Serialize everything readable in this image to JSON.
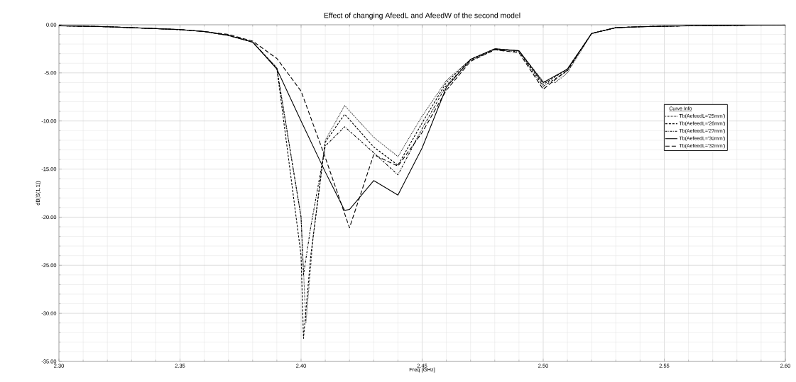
{
  "chart_data": {
    "type": "line",
    "title": "Effect of changing AfeedL and AfeedW of the second model",
    "xlabel": "Freq [GHz]",
    "ylabel": "dB(S(1,1))",
    "legend_title": "Curve Info",
    "legend": "right",
    "grid": true,
    "xlim": [
      2.3,
      2.6
    ],
    "ylim": [
      -35,
      0
    ],
    "xticks": [
      {
        "value": 2.3,
        "label": "2.30"
      },
      {
        "value": 2.35,
        "label": "2.35"
      },
      {
        "value": 2.4,
        "label": "2.40"
      },
      {
        "value": 2.45,
        "label": "2.45"
      },
      {
        "value": 2.5,
        "label": "2.50"
      },
      {
        "value": 2.55,
        "label": "2.55"
      },
      {
        "value": 2.6,
        "label": "2.60"
      }
    ],
    "yticks": [
      {
        "value": -35,
        "label": "-35.00"
      },
      {
        "value": -30,
        "label": "-30.00"
      },
      {
        "value": -25,
        "label": "-25.00"
      },
      {
        "value": -20,
        "label": "-20.00"
      },
      {
        "value": -15,
        "label": "-15.00"
      },
      {
        "value": -10,
        "label": "-10.00"
      },
      {
        "value": -5,
        "label": "-5.00"
      },
      {
        "value": 0,
        "label": "0.00"
      }
    ],
    "series": [
      {
        "name": "Tb(AefeedL='25mm')",
        "color": "#000000",
        "line_style": "dotted",
        "x": [
          2.3,
          2.31,
          2.32,
          2.33,
          2.34,
          2.35,
          2.36,
          2.37,
          2.38,
          2.39,
          2.4,
          2.402,
          2.405,
          2.41,
          2.418,
          2.43,
          2.44,
          2.45,
          2.46,
          2.47,
          2.48,
          2.49,
          2.5,
          2.505,
          2.51,
          2.52,
          2.53,
          2.54,
          2.55,
          2.56,
          2.57,
          2.58,
          2.59,
          2.6
        ],
        "values": [
          -0.1,
          -0.15,
          -0.2,
          -0.3,
          -0.4,
          -0.5,
          -0.7,
          -1.1,
          -1.8,
          -4.6,
          -20,
          -31,
          -22,
          -12,
          -8.4,
          -11.7,
          -13.7,
          -9.5,
          -5.8,
          -3.6,
          -2.5,
          -2.7,
          -5.9,
          -6.0,
          -5.0,
          -0.9,
          -0.3,
          -0.2,
          -0.15,
          -0.1,
          -0.08,
          -0.05,
          -0.03,
          -0.02
        ]
      },
      {
        "name": "Tb(AefeedL='26mm')",
        "color": "#000000",
        "line_style": "dashed",
        "x": [
          2.3,
          2.31,
          2.32,
          2.33,
          2.34,
          2.35,
          2.36,
          2.37,
          2.38,
          2.39,
          2.4,
          2.401,
          2.404,
          2.41,
          2.418,
          2.43,
          2.44,
          2.45,
          2.46,
          2.47,
          2.48,
          2.49,
          2.5,
          2.51,
          2.52,
          2.53,
          2.54,
          2.55,
          2.56,
          2.57,
          2.58,
          2.59,
          2.6
        ],
        "values": [
          -0.1,
          -0.15,
          -0.2,
          -0.3,
          -0.4,
          -0.5,
          -0.7,
          -1.1,
          -1.8,
          -4.5,
          -24,
          -32.6,
          -24,
          -12.2,
          -9.3,
          -12.7,
          -14.6,
          -10.2,
          -6.0,
          -3.6,
          -2.5,
          -2.7,
          -6.2,
          -4.6,
          -0.9,
          -0.3,
          -0.2,
          -0.15,
          -0.1,
          -0.08,
          -0.05,
          -0.03,
          -0.02
        ]
      },
      {
        "name": "Tb(AefeedL='27mm')",
        "color": "#000000",
        "line_style": "dashdot",
        "x": [
          2.3,
          2.31,
          2.32,
          2.33,
          2.34,
          2.35,
          2.36,
          2.37,
          2.38,
          2.39,
          2.4,
          2.401,
          2.404,
          2.41,
          2.418,
          2.43,
          2.44,
          2.45,
          2.46,
          2.47,
          2.48,
          2.49,
          2.5,
          2.51,
          2.52,
          2.53,
          2.54,
          2.55,
          2.56,
          2.57,
          2.58,
          2.59,
          2.6
        ],
        "values": [
          -0.1,
          -0.15,
          -0.2,
          -0.3,
          -0.4,
          -0.5,
          -0.7,
          -1.1,
          -1.8,
          -4.5,
          -20,
          -26,
          -21,
          -12.6,
          -10.6,
          -13.3,
          -15.6,
          -10.8,
          -6.3,
          -3.7,
          -2.6,
          -2.8,
          -6.4,
          -4.8,
          -0.9,
          -0.3,
          -0.2,
          -0.15,
          -0.1,
          -0.08,
          -0.05,
          -0.03,
          -0.02
        ]
      },
      {
        "name": "Tb(AefeedL='30mm')",
        "color": "#000000",
        "line_style": "solid",
        "x": [
          2.3,
          2.31,
          2.32,
          2.33,
          2.34,
          2.35,
          2.36,
          2.37,
          2.38,
          2.39,
          2.4,
          2.41,
          2.418,
          2.42,
          2.43,
          2.44,
          2.45,
          2.46,
          2.47,
          2.48,
          2.49,
          2.5,
          2.51,
          2.52,
          2.53,
          2.54,
          2.55,
          2.56,
          2.57,
          2.58,
          2.59,
          2.6
        ],
        "values": [
          -0.1,
          -0.15,
          -0.2,
          -0.3,
          -0.4,
          -0.5,
          -0.7,
          -1.1,
          -1.8,
          -4.6,
          -10.0,
          -15.3,
          -19.3,
          -19.2,
          -16.2,
          -17.7,
          -12.8,
          -6.5,
          -3.6,
          -2.5,
          -2.7,
          -6.0,
          -4.6,
          -0.9,
          -0.3,
          -0.2,
          -0.15,
          -0.1,
          -0.08,
          -0.05,
          -0.03,
          -0.02
        ]
      },
      {
        "name": "Tb(AefeedL='32mm')",
        "color": "#000000",
        "line_style": "longdashed",
        "x": [
          2.3,
          2.31,
          2.32,
          2.33,
          2.34,
          2.35,
          2.36,
          2.37,
          2.38,
          2.39,
          2.4,
          2.41,
          2.42,
          2.43,
          2.44,
          2.45,
          2.46,
          2.47,
          2.48,
          2.49,
          2.5,
          2.51,
          2.52,
          2.53,
          2.54,
          2.55,
          2.56,
          2.57,
          2.58,
          2.59,
          2.6
        ],
        "values": [
          -0.1,
          -0.15,
          -0.2,
          -0.3,
          -0.4,
          -0.5,
          -0.7,
          -1.0,
          -1.7,
          -3.5,
          -6.9,
          -13.8,
          -21.1,
          -13.5,
          -14.7,
          -11.2,
          -6.8,
          -3.8,
          -2.6,
          -2.9,
          -6.7,
          -4.7,
          -0.9,
          -0.3,
          -0.2,
          -0.15,
          -0.1,
          -0.08,
          -0.05,
          -0.03,
          -0.02
        ]
      }
    ]
  }
}
